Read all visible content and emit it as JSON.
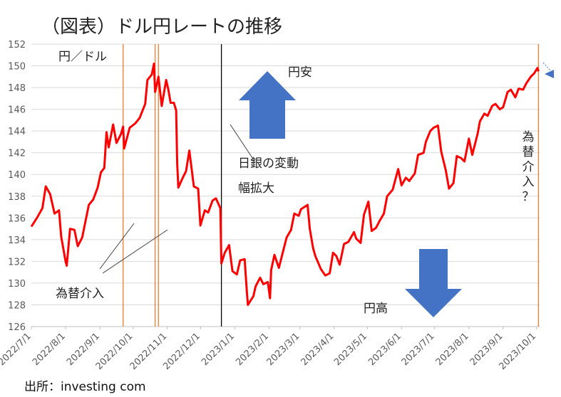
{
  "chart_data": {
    "type": "line",
    "title": "（図表）ドル円レートの推移",
    "ylabel": "円／ドル",
    "ylim": [
      126,
      152
    ],
    "xlim": [
      "2022-07-01",
      "2023-10-04"
    ],
    "y_ticks": [
      "126",
      "128",
      "130",
      "132",
      "134",
      "136",
      "138",
      "140",
      "142",
      "144",
      "146",
      "148",
      "150",
      "152"
    ],
    "x_ticks": [
      "2022/7/1",
      "2022/8/1",
      "2022/9/1",
      "2022/10/1",
      "2022/11/1",
      "2022/12/1",
      "2023/1/1",
      "2023/2/1",
      "2023/3/1",
      "2023/4/1",
      "2023/5/1",
      "2023/6/1",
      "2023/7/1",
      "2023/8/1",
      "2023/9/1",
      "2023/10/1"
    ],
    "grid": "horizontal",
    "series": [
      {
        "color": "#ff0000",
        "points": [
          [
            "2022-07-01",
            135.2
          ],
          [
            "2022-07-06",
            136.0
          ],
          [
            "2022-07-11",
            136.9
          ],
          [
            "2022-07-14",
            138.9
          ],
          [
            "2022-07-18",
            138.2
          ],
          [
            "2022-07-22",
            136.4
          ],
          [
            "2022-07-26",
            136.7
          ],
          [
            "2022-07-28",
            134.3
          ],
          [
            "2022-08-01",
            132.0
          ],
          [
            "2022-08-02",
            131.6
          ],
          [
            "2022-08-05",
            135.0
          ],
          [
            "2022-08-09",
            134.9
          ],
          [
            "2022-08-12",
            133.4
          ],
          [
            "2022-08-16",
            134.2
          ],
          [
            "2022-08-22",
            137.2
          ],
          [
            "2022-08-26",
            137.7
          ],
          [
            "2022-08-30",
            138.8
          ],
          [
            "2022-09-02",
            140.2
          ],
          [
            "2022-09-05",
            140.6
          ],
          [
            "2022-09-07",
            143.9
          ],
          [
            "2022-09-09",
            142.5
          ],
          [
            "2022-09-13",
            144.6
          ],
          [
            "2022-09-16",
            142.9
          ],
          [
            "2022-09-20",
            143.7
          ],
          [
            "2022-09-22",
            144.4
          ],
          [
            "2022-09-23",
            142.4
          ],
          [
            "2022-09-28",
            144.3
          ],
          [
            "2022-10-03",
            144.7
          ],
          [
            "2022-10-07",
            145.2
          ],
          [
            "2022-10-12",
            146.5
          ],
          [
            "2022-10-14",
            148.7
          ],
          [
            "2022-10-18",
            149.2
          ],
          [
            "2022-10-20",
            150.2
          ],
          [
            "2022-10-21",
            147.6
          ],
          [
            "2022-10-24",
            149.0
          ],
          [
            "2022-10-27",
            146.3
          ],
          [
            "2022-10-31",
            148.7
          ],
          [
            "2022-11-02",
            147.8
          ],
          [
            "2022-11-04",
            146.6
          ],
          [
            "2022-11-07",
            146.6
          ],
          [
            "2022-11-09",
            145.9
          ],
          [
            "2022-11-10",
            141.0
          ],
          [
            "2022-11-11",
            138.8
          ],
          [
            "2022-11-15",
            139.7
          ],
          [
            "2022-11-18",
            140.3
          ],
          [
            "2022-11-21",
            142.2
          ],
          [
            "2022-11-25",
            138.9
          ],
          [
            "2022-11-29",
            138.7
          ],
          [
            "2022-12-01",
            135.3
          ],
          [
            "2022-12-05",
            136.7
          ],
          [
            "2022-12-08",
            136.5
          ],
          [
            "2022-12-12",
            137.6
          ],
          [
            "2022-12-15",
            137.8
          ],
          [
            "2022-12-19",
            136.9
          ],
          [
            "2022-12-20",
            131.8
          ],
          [
            "2022-12-23",
            132.8
          ],
          [
            "2022-12-27",
            133.5
          ],
          [
            "2022-12-30",
            131.1
          ],
          [
            "2023-01-03",
            130.8
          ],
          [
            "2023-01-06",
            132.1
          ],
          [
            "2023-01-10",
            132.2
          ],
          [
            "2023-01-12",
            129.2
          ],
          [
            "2023-01-13",
            128.0
          ],
          [
            "2023-01-18",
            128.8
          ],
          [
            "2023-01-20",
            129.7
          ],
          [
            "2023-01-24",
            130.5
          ],
          [
            "2023-01-27",
            129.9
          ],
          [
            "2023-01-31",
            130.1
          ],
          [
            "2023-02-02",
            128.6
          ],
          [
            "2023-02-03",
            131.2
          ],
          [
            "2023-02-06",
            132.6
          ],
          [
            "2023-02-10",
            131.4
          ],
          [
            "2023-02-14",
            133.0
          ],
          [
            "2023-02-17",
            134.2
          ],
          [
            "2023-02-21",
            134.9
          ],
          [
            "2023-02-24",
            136.4
          ],
          [
            "2023-02-28",
            136.2
          ],
          [
            "2023-03-02",
            136.8
          ],
          [
            "2023-03-08",
            137.2
          ],
          [
            "2023-03-10",
            135.0
          ],
          [
            "2023-03-13",
            133.2
          ],
          [
            "2023-03-15",
            132.5
          ],
          [
            "2023-03-20",
            131.3
          ],
          [
            "2023-03-24",
            130.7
          ],
          [
            "2023-03-28",
            130.9
          ],
          [
            "2023-03-31",
            132.8
          ],
          [
            "2023-04-03",
            132.5
          ],
          [
            "2023-04-06",
            131.7
          ],
          [
            "2023-04-10",
            133.6
          ],
          [
            "2023-04-14",
            133.8
          ],
          [
            "2023-04-19",
            134.7
          ],
          [
            "2023-04-21",
            134.1
          ],
          [
            "2023-04-25",
            133.7
          ],
          [
            "2023-04-28",
            136.3
          ],
          [
            "2023-05-02",
            137.5
          ],
          [
            "2023-05-05",
            134.8
          ],
          [
            "2023-05-09",
            135.1
          ],
          [
            "2023-05-12",
            135.7
          ],
          [
            "2023-05-16",
            136.4
          ],
          [
            "2023-05-19",
            138.0
          ],
          [
            "2023-05-24",
            138.6
          ],
          [
            "2023-05-29",
            140.5
          ],
          [
            "2023-06-01",
            139.0
          ],
          [
            "2023-06-05",
            139.7
          ],
          [
            "2023-06-08",
            139.4
          ],
          [
            "2023-06-13",
            140.1
          ],
          [
            "2023-06-16",
            141.8
          ],
          [
            "2023-06-21",
            142.0
          ],
          [
            "2023-06-23",
            143.0
          ],
          [
            "2023-06-27",
            144.0
          ],
          [
            "2023-06-30",
            144.3
          ],
          [
            "2023-07-04",
            144.5
          ],
          [
            "2023-07-07",
            142.1
          ],
          [
            "2023-07-11",
            140.4
          ],
          [
            "2023-07-14",
            138.7
          ],
          [
            "2023-07-18",
            139.2
          ],
          [
            "2023-07-21",
            141.7
          ],
          [
            "2023-07-25",
            141.5
          ],
          [
            "2023-07-28",
            141.2
          ],
          [
            "2023-08-01",
            143.3
          ],
          [
            "2023-08-04",
            141.8
          ],
          [
            "2023-08-09",
            143.8
          ],
          [
            "2023-08-11",
            144.9
          ],
          [
            "2023-08-15",
            145.6
          ],
          [
            "2023-08-18",
            145.4
          ],
          [
            "2023-08-22",
            146.3
          ],
          [
            "2023-08-25",
            146.5
          ],
          [
            "2023-08-29",
            146.0
          ],
          [
            "2023-09-01",
            146.2
          ],
          [
            "2023-09-05",
            147.6
          ],
          [
            "2023-09-08",
            147.8
          ],
          [
            "2023-09-12",
            147.1
          ],
          [
            "2023-09-15",
            147.9
          ],
          [
            "2023-09-19",
            147.8
          ],
          [
            "2023-09-22",
            148.4
          ],
          [
            "2023-09-26",
            149.0
          ],
          [
            "2023-09-29",
            149.3
          ],
          [
            "2023-10-02",
            149.8
          ],
          [
            "2023-10-03",
            149.5
          ]
        ]
      }
    ],
    "vertical_lines": [
      {
        "date": "2022-09-22",
        "color": "#ed7d31"
      },
      {
        "date": "2022-10-21",
        "color": "#ed7d31"
      },
      {
        "date": "2022-10-24",
        "color": "#ed7d31"
      },
      {
        "date": "2022-12-20",
        "color": "#000000"
      },
      {
        "date": "2023-10-03",
        "color": "#ed7d31"
      }
    ],
    "annotations": {
      "unit": "円／ドル",
      "weak_yen": "円安",
      "strong_yen": "円高",
      "boj_line1": "日銀の変動",
      "boj_line2": "幅拡大",
      "intervention": "為替介入",
      "intervention_q": [
        "為",
        "替",
        "介",
        "入",
        "？"
      ]
    },
    "arrow_color": "#4472c4"
  },
  "source": "出所：investing com"
}
